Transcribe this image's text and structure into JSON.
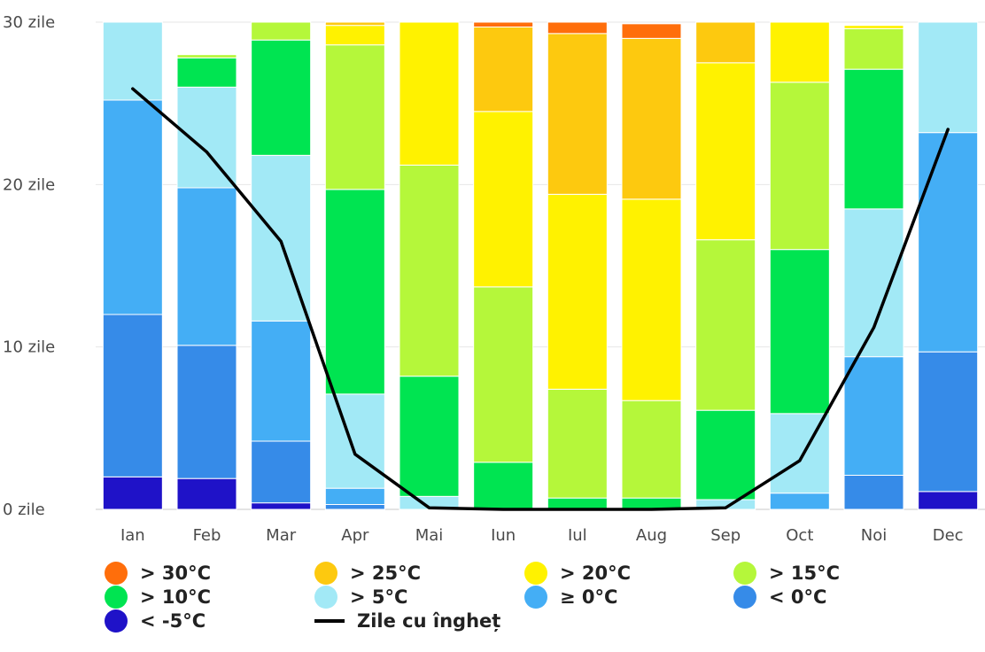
{
  "chart_data": {
    "type": "bar",
    "stacked": true,
    "categories": [
      "Ian",
      "Feb",
      "Mar",
      "Apr",
      "Mai",
      "Iun",
      "Iul",
      "Aug",
      "Sep",
      "Oct",
      "Noi",
      "Dec"
    ],
    "y_ticks": [
      {
        "value": 0,
        "label": "0 zile"
      },
      {
        "value": 10,
        "label": "10 zile"
      },
      {
        "value": 20,
        "label": "20 zile"
      },
      {
        "value": 30,
        "label": "30 zile"
      }
    ],
    "ylim": [
      0,
      30
    ],
    "grid": true,
    "legend_position": "bottom",
    "series": [
      {
        "name": "< -5°C",
        "color": "#1f12c8",
        "values": [
          2.0,
          1.9,
          0.4,
          0.0,
          0.0,
          0.0,
          0.0,
          0.0,
          0.0,
          0.0,
          0.0,
          1.1
        ]
      },
      {
        "name": "< 0°C",
        "color": "#368be8",
        "values": [
          10.0,
          8.2,
          3.8,
          0.3,
          0.0,
          0.0,
          0.0,
          0.0,
          0.0,
          0.0,
          2.1,
          8.6
        ]
      },
      {
        "name": "≥ 0°C",
        "color": "#44aef5",
        "values": [
          13.2,
          9.7,
          7.4,
          1.0,
          0.0,
          0.0,
          0.0,
          0.0,
          0.0,
          1.0,
          7.3,
          13.5
        ]
      },
      {
        "name": "> 5°C",
        "color": "#a2e9f6",
        "values": [
          4.8,
          6.2,
          10.2,
          5.8,
          0.8,
          0.0,
          0.0,
          0.0,
          0.6,
          4.9,
          9.1,
          6.8
        ]
      },
      {
        "name": "> 10°C",
        "color": "#00e451",
        "values": [
          0.0,
          1.8,
          7.1,
          12.6,
          7.4,
          2.9,
          0.7,
          0.7,
          5.5,
          10.1,
          8.6,
          0.0
        ]
      },
      {
        "name": "> 15°C",
        "color": "#b5f73a",
        "values": [
          0.0,
          0.2,
          1.1,
          8.9,
          13.0,
          10.8,
          6.7,
          6.0,
          10.5,
          10.3,
          2.5,
          0.0
        ]
      },
      {
        "name": "> 20°C",
        "color": "#fff200",
        "values": [
          0.0,
          0.0,
          0.0,
          1.2,
          8.8,
          10.8,
          12.0,
          12.4,
          10.9,
          3.7,
          0.2,
          0.0
        ]
      },
      {
        "name": "> 25°C",
        "color": "#fdc90f",
        "values": [
          0.0,
          0.0,
          0.0,
          0.2,
          0.0,
          5.2,
          9.9,
          9.9,
          2.5,
          0.0,
          0.0,
          0.0
        ]
      },
      {
        "name": "> 30°C",
        "color": "#ff6e0b",
        "values": [
          0.0,
          0.0,
          0.0,
          0.0,
          0.0,
          0.3,
          0.7,
          0.9,
          0.0,
          0.0,
          0.0,
          0.0
        ]
      }
    ],
    "line_series": {
      "name": "Zile cu îngheț",
      "color": "#000000",
      "values": [
        25.9,
        22.0,
        16.5,
        3.4,
        0.1,
        0.0,
        0.0,
        0.0,
        0.1,
        3.0,
        11.2,
        23.4
      ]
    }
  },
  "legend": {
    "items": [
      {
        "label": "> 30°C",
        "color": "#ff6e0b",
        "kind": "dot"
      },
      {
        "label": "> 25°C",
        "color": "#fdc90f",
        "kind": "dot"
      },
      {
        "label": "> 20°C",
        "color": "#fff200",
        "kind": "dot"
      },
      {
        "label": "> 15°C",
        "color": "#b5f73a",
        "kind": "dot"
      },
      {
        "label": "> 10°C",
        "color": "#00e451",
        "kind": "dot"
      },
      {
        "label": "> 5°C",
        "color": "#a2e9f6",
        "kind": "dot"
      },
      {
        "label": "≥ 0°C",
        "color": "#44aef5",
        "kind": "dot"
      },
      {
        "label": "< 0°C",
        "color": "#368be8",
        "kind": "dot"
      },
      {
        "label": "< -5°C",
        "color": "#1f12c8",
        "kind": "dot"
      },
      {
        "label": "Zile cu îngheț",
        "color": "#000000",
        "kind": "line"
      }
    ]
  }
}
